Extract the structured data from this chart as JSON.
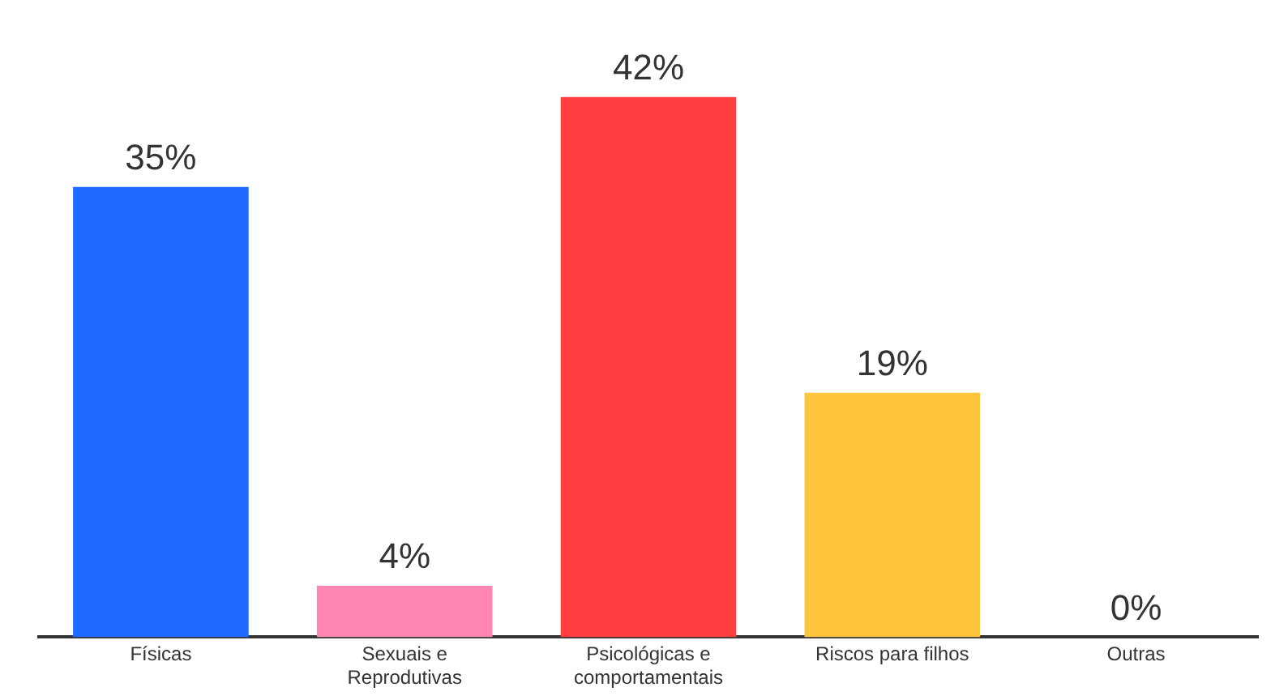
{
  "chart_data": {
    "type": "bar",
    "categories": [
      "Físicas",
      "Sexuais e Reprodutivas",
      "Psicológicas e comportamentais",
      "Riscos para filhos",
      "Outras"
    ],
    "values": [
      35,
      4,
      42,
      19,
      0
    ],
    "colors": [
      "#1f6bff",
      "#ff85b3",
      "#ff3f3f",
      "#ffc53d",
      "#9e9e9e"
    ],
    "value_labels": [
      "35%",
      "4%",
      "42%",
      "19%",
      "0%"
    ],
    "grid": false,
    "legend": false
  }
}
